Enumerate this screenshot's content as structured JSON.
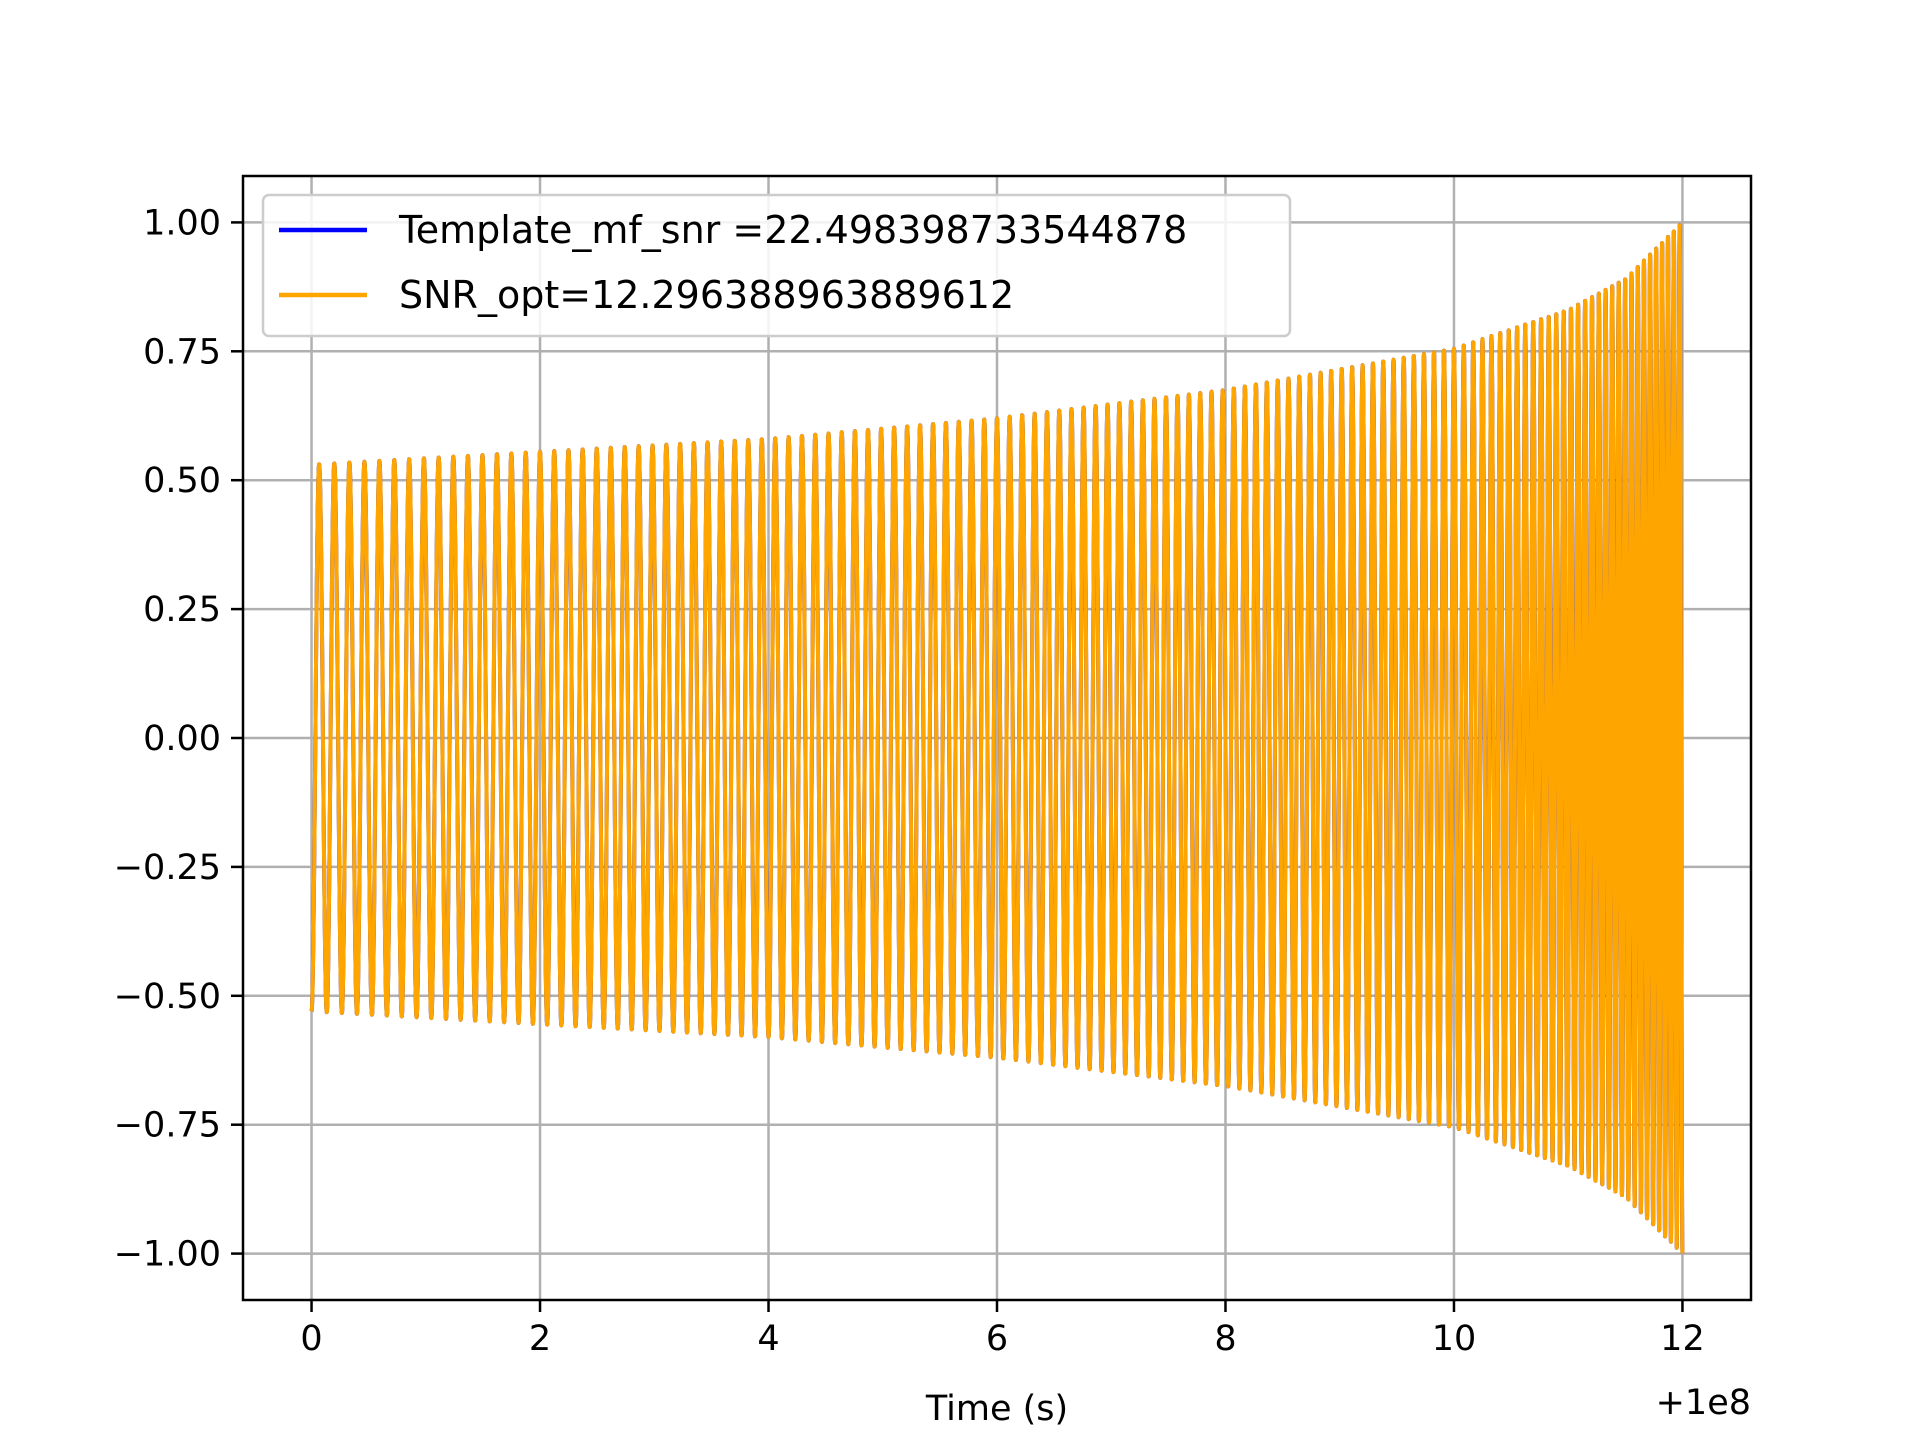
{
  "chart_data": {
    "type": "line",
    "title": "",
    "xlabel": "Time (s)",
    "ylabel": "",
    "x_offset_label": "+1e8",
    "xlim": [
      -0.6,
      12.6
    ],
    "ylim": [
      -1.09,
      1.09
    ],
    "x_ticks": [
      0,
      2,
      4,
      6,
      8,
      10,
      12
    ],
    "x_tick_labels": [
      "0",
      "2",
      "4",
      "6",
      "8",
      "10",
      "12"
    ],
    "y_ticks": [
      1.0,
      0.75,
      0.5,
      0.25,
      0.0,
      -0.25,
      -0.5,
      -0.75,
      -1.0
    ],
    "y_tick_labels": [
      "1.00",
      "0.75",
      "0.50",
      "0.25",
      "0.00",
      "−0.25",
      "−0.50",
      "−0.75",
      "−1.00"
    ],
    "grid": true,
    "legend_position": "top-left",
    "series": [
      {
        "name": "Template_mf_snr =22.498398733544878",
        "color": "#0000ff",
        "start": 0,
        "end": 12,
        "envelope": {
          "t": [
            0,
            2,
            4,
            6,
            8,
            10,
            11,
            11.5,
            12
          ],
          "amp": [
            0.53,
            0.555,
            0.58,
            0.62,
            0.675,
            0.755,
            0.83,
            0.89,
            1.0
          ]
        },
        "frequency_hz": {
          "t": [
            0,
            6,
            10,
            12
          ],
          "f": [
            7.5,
            9.0,
            11.5,
            20.0
          ]
        }
      },
      {
        "name": "SNR_opt=12.296388963889612",
        "color": "#ffa500",
        "start": 0,
        "end": 12,
        "envelope": {
          "t": [
            0,
            2,
            4,
            6,
            8,
            10,
            11,
            11.5,
            12
          ],
          "amp": [
            0.53,
            0.555,
            0.58,
            0.62,
            0.675,
            0.755,
            0.83,
            0.89,
            1.0
          ]
        },
        "frequency_hz": {
          "t": [
            0,
            6,
            10,
            12
          ],
          "f": [
            7.5,
            9.0,
            11.5,
            20.0
          ]
        }
      }
    ]
  }
}
